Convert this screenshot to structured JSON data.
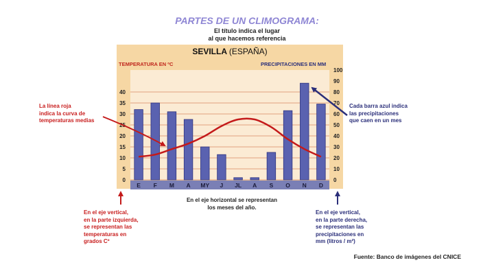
{
  "page": {
    "title": "PARTES DE UN CLIMOGRAMA:",
    "subtitle": "El título indica el lugar\nal que hacemos referencia",
    "source": "Fuente: Banco de imágenes del CNICE"
  },
  "annotations": {
    "red_line": "La línea roja\nindica la curva de\ntemperaturas medias",
    "blue_bar": "Cada barra azul indica\nlas precipitaciones\nque caen en un mes",
    "horizontal_axis": "En el eje horizontal se representan\nlos meses del año.",
    "left_axis": "En el eje vertical,\nen la parte izquierda,\nse representan las\ntemperaturas en\ngrados Cº",
    "right_axis": "En el eje vertical,\nen la parte derecha,\nse representan las\nprecipitaciones en\nmm (litros / m²)"
  },
  "colors": {
    "title": "#8e86d4",
    "panel_bg": "#f6d7a4",
    "plot_bg": "#fbebd4",
    "grid": "#e0a07e",
    "bar": "#5a62b0",
    "bar_edge": "#2e3480",
    "temp_line": "#c41a1a",
    "axis_band": "#7a7fb5",
    "annotation_red": "#c81e1e",
    "annotation_blue": "#2b2f7a"
  },
  "chart_data": {
    "type": "bar",
    "title": "SEVILLA",
    "title_suffix": "(ESPAÑA)",
    "categories": [
      "E",
      "F",
      "M",
      "A",
      "MY",
      "J",
      "JL",
      "A",
      "S",
      "O",
      "N",
      "D"
    ],
    "series": [
      {
        "name": "PRECIPITACIONES EN MM",
        "type": "bar",
        "axis": "right",
        "values": [
          64,
          70,
          62,
          55,
          30,
          23,
          2,
          2,
          25,
          63,
          88,
          69
        ]
      },
      {
        "name": "TEMPERATURA EN ºC",
        "type": "line",
        "axis": "left",
        "values": [
          10.5,
          11.5,
          14,
          16.5,
          20,
          24.5,
          27.5,
          27.5,
          24,
          18.5,
          14,
          10.5
        ]
      }
    ],
    "left_axis": {
      "label": "TEMPERATURA EN ºC",
      "ylim": [
        0,
        50
      ],
      "ticks": [
        0,
        5,
        10,
        15,
        20,
        25,
        30,
        35,
        40
      ]
    },
    "right_axis": {
      "label": "PRECIPITACIONES EN MM",
      "ylim": [
        0,
        100
      ],
      "ticks": [
        0,
        10,
        20,
        30,
        40,
        50,
        60,
        70,
        80,
        90,
        100
      ]
    },
    "grid": true
  }
}
